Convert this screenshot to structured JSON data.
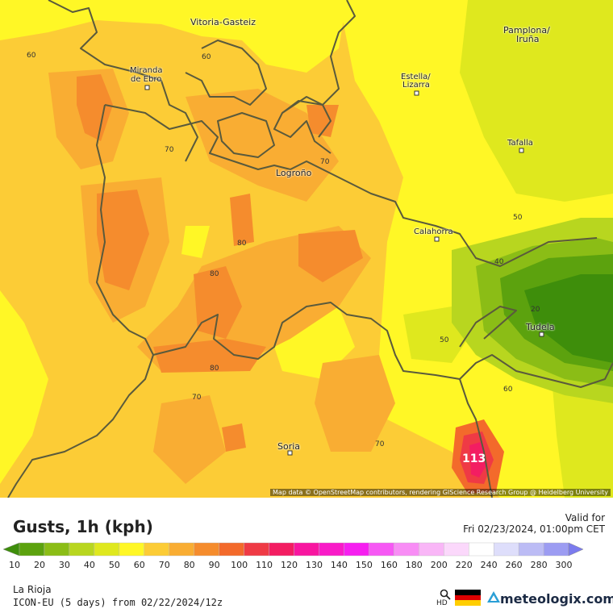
{
  "map": {
    "attribution": "Map data © OpenStreetMap contributors, rendering GIScience Research Group @ Heidelberg University",
    "cities": [
      {
        "name": "Vitoria-Gasteiz"
      },
      {
        "name": "Pamplona/"
      },
      {
        "name": "Iruña"
      },
      {
        "name": "Miranda"
      },
      {
        "name": "de Ebro"
      },
      {
        "name": "Estella/"
      },
      {
        "name": "Lizarra"
      },
      {
        "name": "Tafalla"
      },
      {
        "name": "Logroño"
      },
      {
        "name": "Calahorra"
      },
      {
        "name": "Tudela"
      },
      {
        "name": "Soria"
      }
    ],
    "contour_labels": [
      "60",
      "60",
      "70",
      "70",
      "80",
      "80",
      "80",
      "70",
      "70",
      "50",
      "40",
      "20",
      "50",
      "60",
      "113"
    ]
  },
  "legend": {
    "title": "Gusts, 1h (kph)",
    "valid_label": "Valid for",
    "valid_time": "Fri 02/23/2024, 01:00pm CET",
    "region": "La Rioja",
    "model": "ICON-EU (5 days) from 02/22/2024/12z",
    "brand": "meteologix.com",
    "hd": "HD",
    "ticks": [
      "10",
      "20",
      "30",
      "40",
      "50",
      "60",
      "70",
      "80",
      "90",
      "100",
      "110",
      "120",
      "130",
      "140",
      "150",
      "160",
      "180",
      "200",
      "220",
      "240",
      "260",
      "280",
      "300"
    ],
    "colors": [
      "#3e8e0b",
      "#5ca20e",
      "#8bbd16",
      "#b8d61f",
      "#dfe81e",
      "#fff726",
      "#fccc36",
      "#f9ad33",
      "#f58c2d",
      "#f36a2b",
      "#ef3a45",
      "#f31d62",
      "#f816a0",
      "#f91bc8",
      "#f61ff0",
      "#f658f4",
      "#f88df5",
      "#f9b6f7",
      "#fbd8fb",
      "#ffffff",
      "#dedefb",
      "#bcbcf5",
      "#9c9cf2",
      "#7b7bee"
    ]
  }
}
